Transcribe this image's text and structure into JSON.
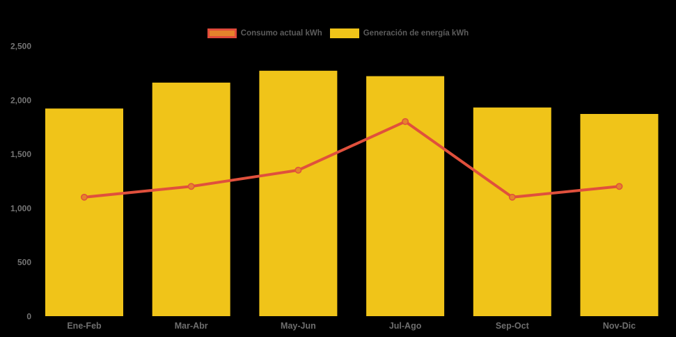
{
  "page": {
    "background": "#000000"
  },
  "legend": {
    "text_color": "#5C5C5C",
    "items": [
      {
        "label": "Consumo actual kWh",
        "swatch_fill": "#E5832B",
        "swatch_border": "#E04A3A",
        "series": "line"
      },
      {
        "label": "Generación de energía kWh",
        "swatch_fill": "#F0C419",
        "swatch_border": "#F0C419",
        "series": "bar"
      }
    ]
  },
  "chart_data": {
    "type": "combo",
    "categories": [
      "Ene-Feb",
      "Mar-Abr",
      "May-Jun",
      "Jul-Ago",
      "Sep-Oct",
      "Nov-Dic"
    ],
    "series": [
      {
        "name": "Generación de energía kWh",
        "type": "bar",
        "color": "#F0C419",
        "values": [
          1920,
          2160,
          2270,
          2220,
          1930,
          1870
        ]
      },
      {
        "name": "Consumo actual kWh",
        "type": "line",
        "color": "#E0503C",
        "marker_color": "#E5832B",
        "values": [
          1100,
          1200,
          1350,
          1800,
          1100,
          1200
        ]
      }
    ],
    "xlabel": "",
    "ylabel": "",
    "ylim": [
      0,
      2500
    ],
    "yticks": [
      0,
      500,
      1000,
      1500,
      2000,
      2500
    ],
    "ytick_labels": [
      "0",
      "500",
      "1,000",
      "1,500",
      "2,000",
      "2,500"
    ],
    "grid": false,
    "legend_position": "top-center",
    "background": "#000000",
    "axis_text_color": "#757575",
    "xaxis_text_color": "#6E6E6E"
  }
}
